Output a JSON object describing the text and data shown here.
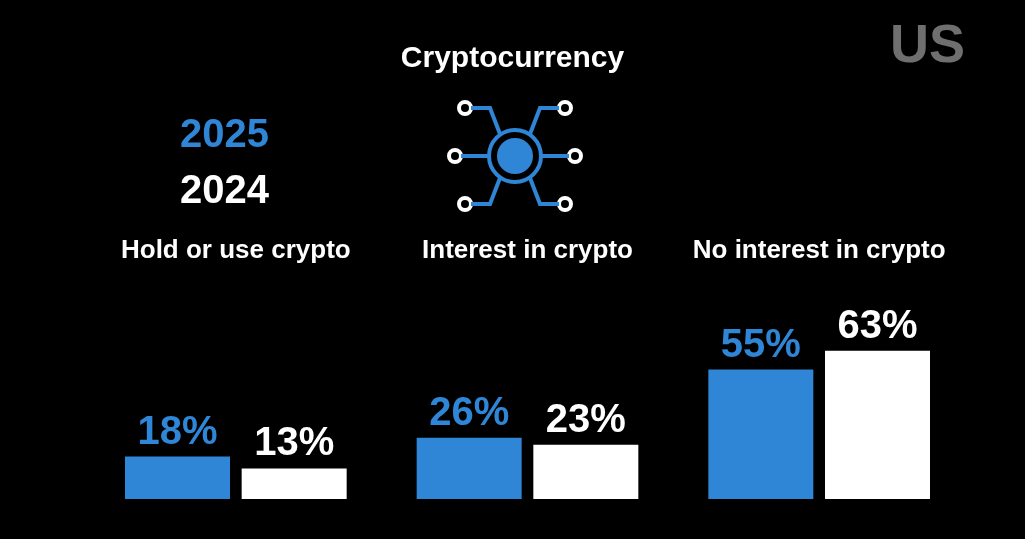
{
  "chart_data": {
    "type": "bar",
    "title": "Cryptocurrency",
    "categories": [
      "Hold or use crypto",
      "Interest in crypto",
      "No interest in crypto"
    ],
    "series": [
      {
        "name": "2025",
        "color": "#2f86d6",
        "values": [
          18,
          26,
          55
        ],
        "value_labels": [
          "18%",
          "26%",
          "55%"
        ]
      },
      {
        "name": "2024",
        "color": "#ffffff",
        "values": [
          13,
          23,
          63
        ],
        "value_labels": [
          "13%",
          "23%",
          "63%"
        ]
      }
    ],
    "legend": "top left",
    "annotations": [
      "US"
    ]
  }
}
